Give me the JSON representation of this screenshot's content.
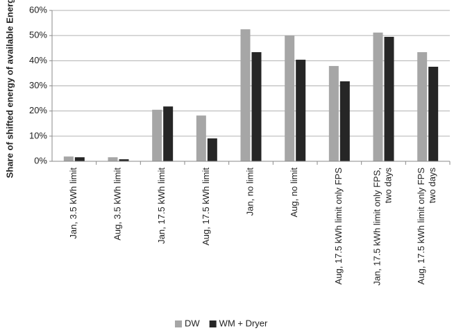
{
  "chart_data": {
    "type": "bar",
    "y_label": "Share of shifted energy of available Energy",
    "categories": [
      "Jan, 3.5 kWh limit",
      "Aug, 3.5 kWh limit",
      "Jan, 17.5 kWh limit",
      "Aug, 17.5 kWh limit",
      "Jan, no limit",
      "Aug, no limit",
      "Aug, 17.5 kWh limit only FPS",
      "Jan, 17.5 kWh limit only FPS,\ntwo days",
      "Aug, 17.5 kWh limit only FPS\ntwo days"
    ],
    "series": [
      {
        "name": "DW",
        "color": "#a6a6a6",
        "values": [
          1.9,
          1.6,
          20.5,
          18.2,
          52.5,
          50.0,
          37.9,
          51.2,
          43.4
        ]
      },
      {
        "name": "WM + Dryer",
        "color": "#262626",
        "values": [
          1.6,
          0.8,
          21.8,
          9.1,
          43.4,
          40.4,
          31.8,
          49.5,
          37.6
        ]
      }
    ],
    "ylim": [
      0,
      60
    ],
    "yticks": [
      {
        "value": 0,
        "label": "0%"
      },
      {
        "value": 10,
        "label": "10%"
      },
      {
        "value": 20,
        "label": "20%"
      },
      {
        "value": 30,
        "label": "30%"
      },
      {
        "value": 40,
        "label": "40%"
      },
      {
        "value": 50,
        "label": "50%"
      },
      {
        "value": 60,
        "label": "60%"
      }
    ],
    "grid": true,
    "legend": "bottom"
  }
}
